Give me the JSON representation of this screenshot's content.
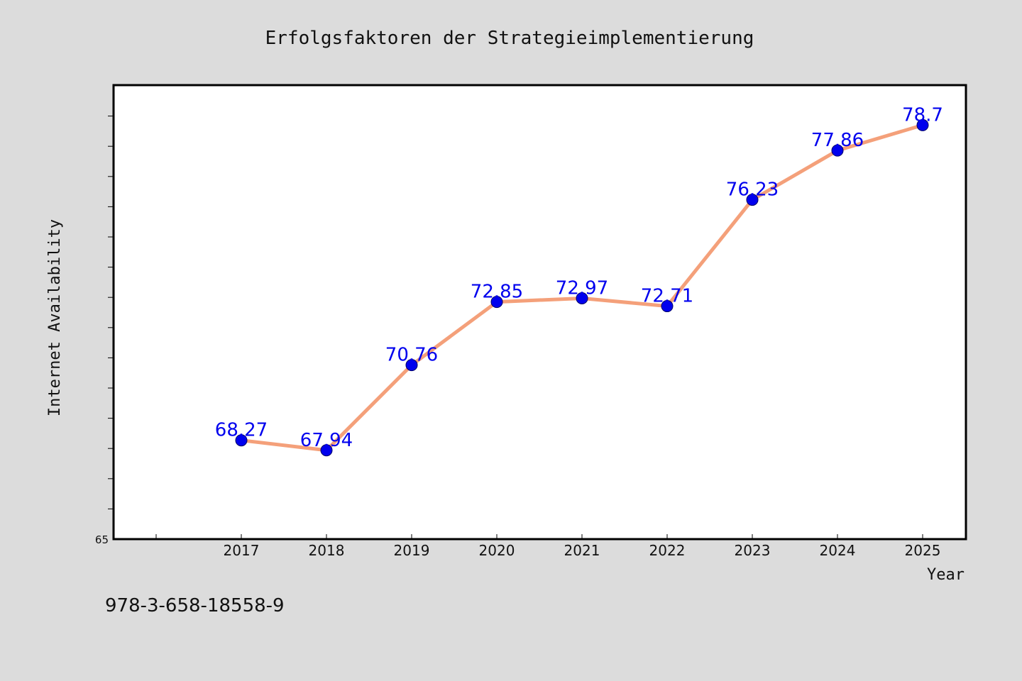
{
  "chart_data": {
    "type": "line",
    "title": "Erfolgsfaktoren der Strategieimplementierung",
    "xlabel": "Year",
    "ylabel": "Internet Availability",
    "categories": [
      "2017",
      "2018",
      "2019",
      "2020",
      "2021",
      "2022",
      "2023",
      "2024",
      "2025"
    ],
    "series": [
      {
        "values": [
          68.27,
          67.94,
          70.76,
          72.85,
          72.97,
          72.71,
          76.23,
          77.86,
          78.7
        ],
        "labels": [
          "68.27",
          "67.94",
          "70.76",
          "72.85",
          "72.97",
          "72.71",
          "76.23",
          "77.86",
          "78.7"
        ]
      }
    ],
    "ylim": [
      65,
      80
    ],
    "y_tick_label": "65",
    "grid": false,
    "legend": "none",
    "colors": {
      "line": "#f4a07a",
      "marker": "#0000ee",
      "data_label": "#0000ee",
      "background": "#dcdcdc",
      "plot_background": "#ffffff"
    }
  },
  "footer": {
    "isbn": "978-3-658-18558-9"
  }
}
